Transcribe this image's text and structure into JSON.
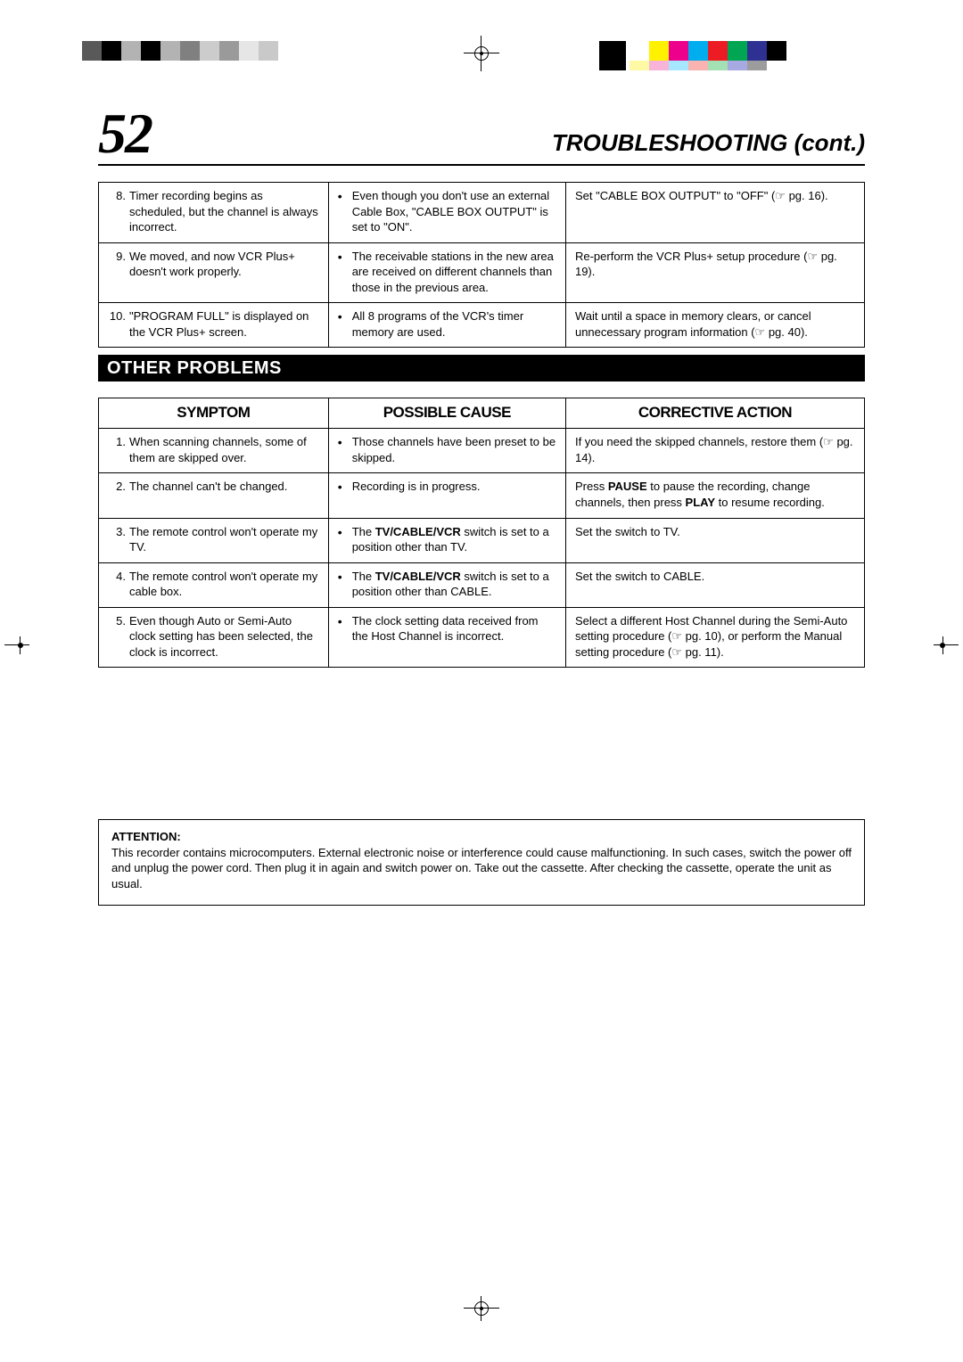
{
  "colors": {
    "gray_swatches": [
      "#595959",
      "#000000",
      "#b3b3b3",
      "#000000",
      "#b3b3b3",
      "#808080",
      "#cccccc",
      "#9a9a9a",
      "#e6e6e6",
      "#c9c9c9"
    ],
    "cmyk_bar_left": [
      "#000000"
    ],
    "cmyk_bar_right": [
      "#ffffff",
      "#fff200",
      "#ec008c",
      "#00aeef",
      "#ed1c24",
      "#00a651",
      "#2e3192",
      "#000000"
    ],
    "pastel_bar": [
      "#fff9a6",
      "#f7b4d8",
      "#a6e7ff",
      "#f9b3b0",
      "#a3e0b4",
      "#a7a9e3",
      "#9c9c9c"
    ]
  },
  "header": {
    "page_number": "52",
    "title": "TROUBLESHOOTING (cont.)"
  },
  "top_rows": [
    {
      "num": "8.",
      "symptom": "Timer recording begins as scheduled, but the channel is always incorrect.",
      "cause": "Even though you don't use an external Cable Box, \"CABLE BOX OUTPUT\" is set to \"ON\".",
      "action": "Set \"CABLE BOX OUTPUT\" to \"OFF\" (☞ pg. 16)."
    },
    {
      "num": "9.",
      "symptom": "We moved, and now VCR Plus+ doesn't work properly.",
      "cause": "The receivable stations in the new area are received on different channels than those in the previous area.",
      "action": "Re-perform the VCR Plus+ setup procedure (☞ pg. 19)."
    },
    {
      "num": "10.",
      "symptom": "\"PROGRAM FULL\" is displayed on the VCR Plus+ screen.",
      "cause": "All 8 programs of the VCR's timer memory are used.",
      "action": "Wait until a space in memory clears, or cancel unnecessary program information (☞ pg. 40)."
    }
  ],
  "section_title": "Other Problems",
  "column_headers": {
    "c1": "SYMPTOM",
    "c2": "POSSIBLE CAUSE",
    "c3": "CORRECTIVE ACTION"
  },
  "other_rows": [
    {
      "num": "1.",
      "symptom": "When scanning channels, some of them are skipped over.",
      "cause": "Those channels have been preset to be skipped.",
      "action": "If you need the skipped channels, restore them (☞ pg. 14)."
    },
    {
      "num": "2.",
      "symptom": "The channel can't be changed.",
      "cause": "Recording is in progress.",
      "action_html": "Press <b>PAUSE</b> to pause the recording, change channels, then press <b>PLAY</b> to resume recording."
    },
    {
      "num": "3.",
      "symptom": "The remote control won't operate my TV.",
      "cause_html": "The <b>TV/CABLE/VCR</b> switch is set to a position other than TV.",
      "action": "Set the switch to TV."
    },
    {
      "num": "4.",
      "symptom": "The remote control won't operate my cable box.",
      "cause_html": "The <b>TV/CABLE/VCR</b> switch is set to a position other than CABLE.",
      "action": "Set the switch to CABLE."
    },
    {
      "num": "5.",
      "symptom": "Even though Auto or Semi-Auto clock setting has been selected, the clock is incorrect.",
      "cause": "The clock setting data received from the Host Channel is incorrect.",
      "action": "Select a different Host Channel during the Semi-Auto setting procedure (☞ pg. 10), or perform the Manual setting procedure (☞ pg. 11)."
    }
  ],
  "attention": {
    "label": "ATTENTION:",
    "body": "This recorder contains microcomputers. External electronic noise or interference could cause malfunctioning. In such cases, switch the power off and unplug the power cord. Then plug it in again and switch power on. Take out the cassette. After checking the cassette, operate the unit as usual."
  }
}
